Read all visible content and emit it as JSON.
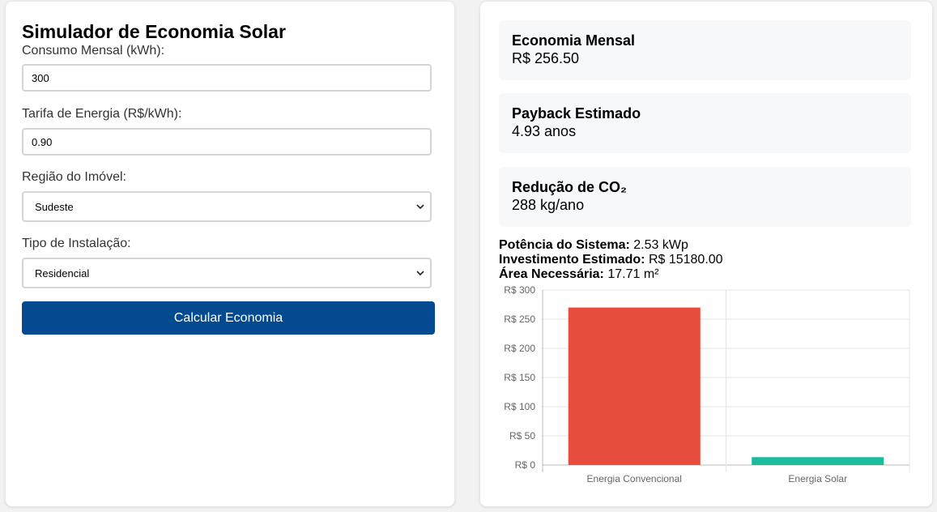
{
  "form": {
    "title": "Simulador de Economia Solar",
    "consumo_label": "Consumo Mensal (kWh):",
    "consumo_value": "300",
    "tarifa_label": "Tarifa de Energia (R$/kWh):",
    "tarifa_value": "0.90",
    "regiao_label": "Região do Imóvel:",
    "regiao_value": "Sudeste",
    "tipo_label": "Tipo de Instalação:",
    "tipo_value": "Residencial",
    "button_label": "Calcular Economia"
  },
  "results": {
    "economia_title": "Economia Mensal",
    "economia_value": "R$ 256.50",
    "payback_title": "Payback Estimado",
    "payback_value": "4.93 anos",
    "co2_title": "Redução de CO₂",
    "co2_value": "288 kg/ano",
    "potencia_label": "Potência do Sistema:",
    "potencia_value": "2.53 kWp",
    "investimento_label": "Investimento Estimado:",
    "investimento_value": "R$ 15180.00",
    "area_label": "Área Necessária:",
    "area_value": "17.71 m²"
  },
  "colors": {
    "button": "#034a90",
    "bar_convencional": "#e74c3c",
    "bar_solar": "#1abc9c"
  },
  "icons": {
    "select_arrow": "chevron-down-icon"
  },
  "chart_data": {
    "type": "bar",
    "categories": [
      "Energia Convencional",
      "Energia Solar"
    ],
    "values": [
      270,
      13.5
    ],
    "colors": [
      "#e74c3c",
      "#1abc9c"
    ],
    "ylim": [
      0,
      300
    ],
    "yticks": [
      0,
      50,
      100,
      150,
      200,
      250,
      300
    ],
    "ytick_prefix": "R$ ",
    "grid": true,
    "legend": "none"
  }
}
